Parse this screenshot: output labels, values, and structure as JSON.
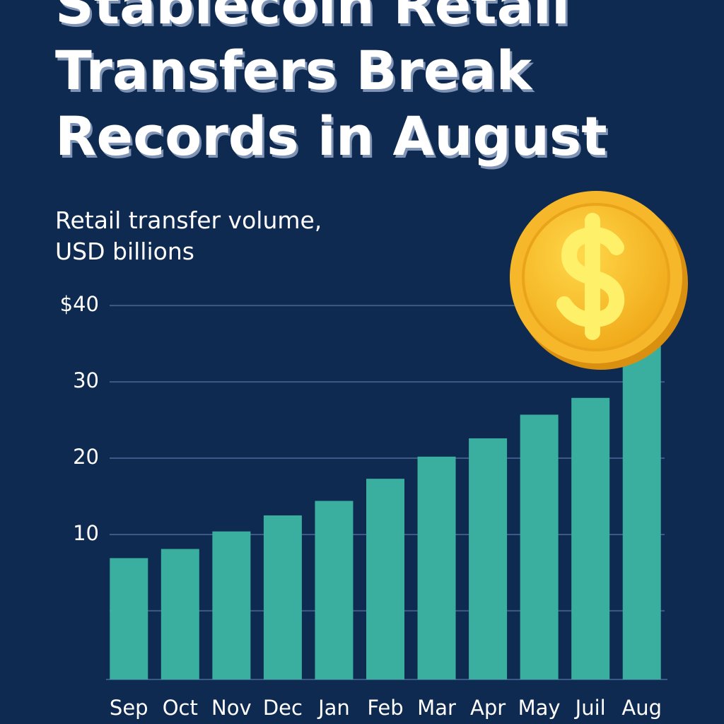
{
  "chart_data": {
    "type": "bar",
    "title": "Stablecoin Retail Transfers Break Records in August",
    "subtitle": "Retail transfer volume, USD billions",
    "categories": [
      "Sep",
      "Oct",
      "Nov",
      "Dec",
      "Jan",
      "Feb",
      "Mar",
      "Apr",
      "May",
      "Juil",
      "Aug"
    ],
    "values": [
      6.9,
      8.1,
      10.4,
      12.5,
      14.4,
      17.3,
      20.2,
      22.6,
      25.7,
      27.9,
      38
    ],
    "color": "#3aafa0",
    "ylim": [
      -9,
      44
    ],
    "yticks": [
      {
        "value": 0,
        "label": null
      },
      10,
      20,
      30,
      {
        "value": 40,
        "label": "$40"
      }
    ],
    "grid": true
  }
}
